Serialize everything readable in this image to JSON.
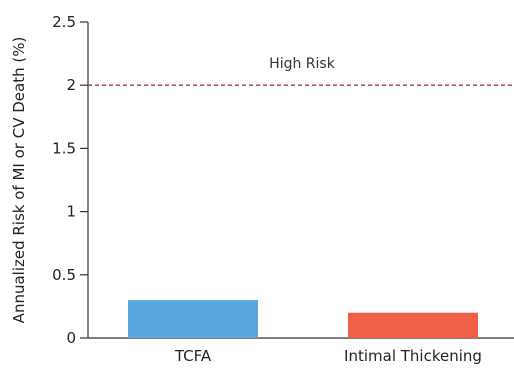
{
  "chart_data": {
    "type": "bar",
    "title": "",
    "xlabel": "",
    "ylabel": "Annualized Risk of MI or CV Death (%)",
    "categories": [
      "TCFA",
      "Intimal Thickening"
    ],
    "values": [
      0.3,
      0.2
    ],
    "ylim": [
      0,
      2.5
    ],
    "yticks": [
      "0",
      "0.5",
      "1",
      "1.5",
      "2",
      "2.5"
    ],
    "bar_colors": [
      "#5aa7e0",
      "#ef5f4a"
    ],
    "grid": false,
    "reference_line": {
      "value": 2,
      "label": "High Risk",
      "color": "#a0336e",
      "style": "dashed"
    }
  }
}
